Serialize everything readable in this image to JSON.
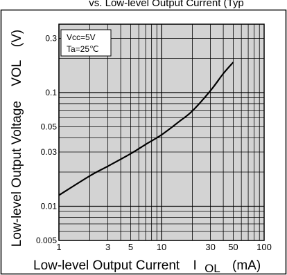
{
  "header_fragment": "vs. Low-level Output Current (Typ",
  "chart_data": {
    "type": "line",
    "log_x": true,
    "log_y": true,
    "xlim": [
      1,
      100
    ],
    "ylim": [
      0.005,
      0.4
    ],
    "grid": true,
    "xlabel": "Low-level Output Current",
    "xlabel_symbol": "I",
    "xlabel_subscript": "OL",
    "xlabel_unit": "(mA)",
    "ylabel": "Low-level Output Voltage",
    "ylabel_symbol": "VOL",
    "ylabel_unit": "(V)",
    "x_ticks": [
      {
        "value": 1,
        "label": "1"
      },
      {
        "value": 3,
        "label": "3"
      },
      {
        "value": 5,
        "label": "5"
      },
      {
        "value": 10,
        "label": "10"
      },
      {
        "value": 30,
        "label": "30"
      },
      {
        "value": 50,
        "label": "50"
      },
      {
        "value": 100,
        "label": "100"
      }
    ],
    "y_ticks": [
      {
        "value": 0.005,
        "label": "0.005"
      },
      {
        "value": 0.01,
        "label": "0.01"
      },
      {
        "value": 0.03,
        "label": "0.03"
      },
      {
        "value": 0.05,
        "label": "0.05"
      },
      {
        "value": 0.1,
        "label": "0.1"
      },
      {
        "value": 0.3,
        "label": "0.3"
      }
    ],
    "annotation": [
      "Vcc=5V",
      "Ta=25℃"
    ],
    "series": [
      {
        "color": "#000000",
        "x": [
          1,
          2,
          3,
          5,
          7,
          10,
          15,
          20,
          30,
          40,
          50
        ],
        "y": [
          0.0125,
          0.0185,
          0.0225,
          0.029,
          0.035,
          0.0425,
          0.056,
          0.069,
          0.104,
          0.147,
          0.185
        ]
      }
    ]
  },
  "colors": {
    "plot_background": "#d3d3d3",
    "grid_line": "#000000",
    "frame": "#000000",
    "annotation_background": "#ffffff"
  }
}
